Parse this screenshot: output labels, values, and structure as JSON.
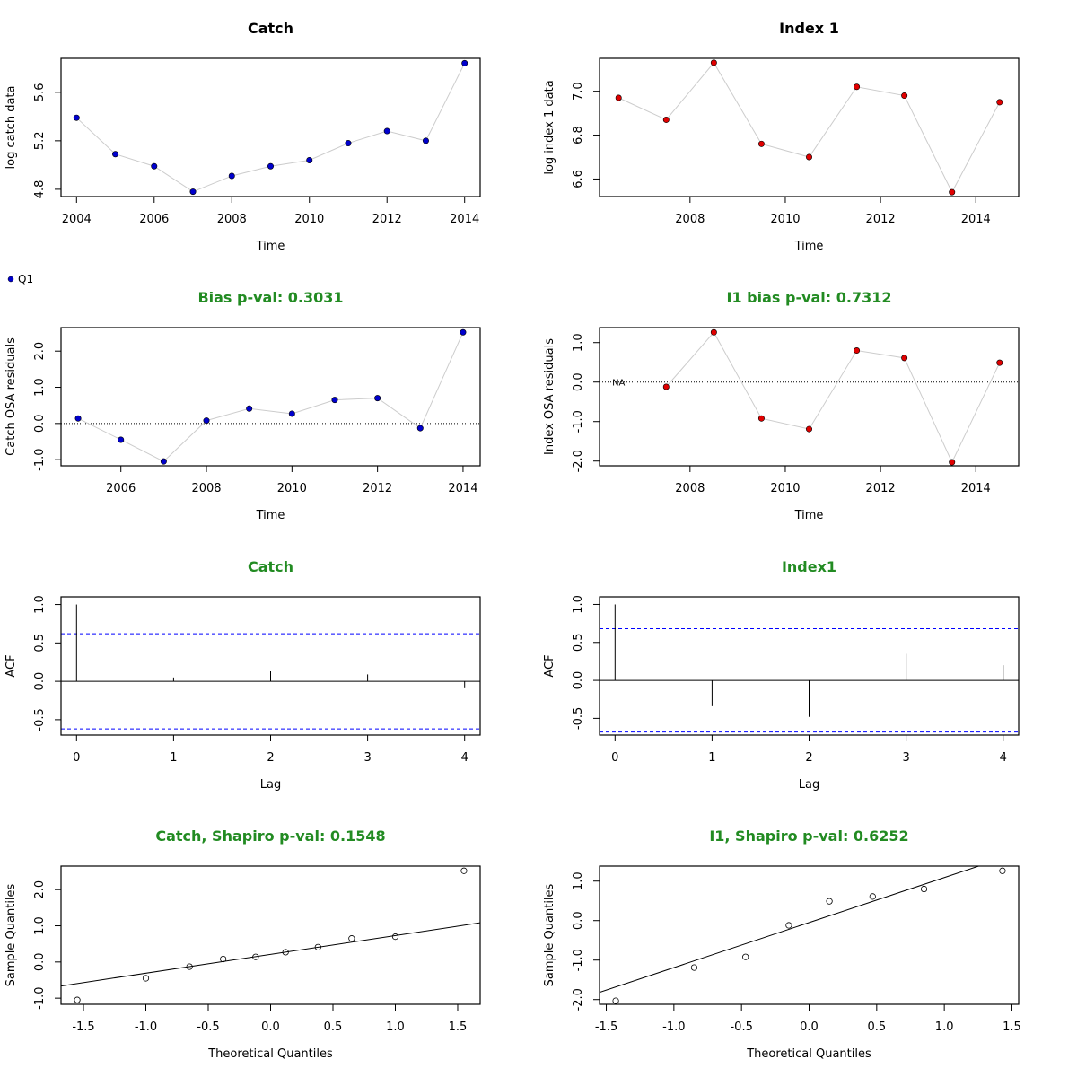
{
  "colors": {
    "green_title": "#228b22",
    "black_title": "#000000",
    "catch_point": "#0000cd",
    "index_point": "#e00000",
    "connector": "#cccccc",
    "ci_line": "#0000ff"
  },
  "chart_data": [
    {
      "id": "catch-data",
      "type": "line",
      "title": "Catch",
      "title_color": "black",
      "xlabel": "Time",
      "ylabel": "log catch data",
      "xlim": [
        2003.6,
        2014.4
      ],
      "ylim": [
        4.74,
        5.88
      ],
      "xticks": [
        2004,
        2006,
        2008,
        2010,
        2012,
        2014
      ],
      "yticks": [
        4.8,
        5.2,
        5.6
      ],
      "ytick_labels": [
        "4.8",
        "5.2",
        "5.6"
      ],
      "point_color": "blue",
      "x": [
        2004,
        2005,
        2006,
        2007,
        2008,
        2009,
        2010,
        2011,
        2012,
        2013,
        2014
      ],
      "y": [
        5.39,
        5.09,
        4.99,
        4.78,
        4.91,
        4.99,
        5.04,
        5.18,
        5.28,
        5.2,
        5.84
      ]
    },
    {
      "id": "index-data",
      "type": "line",
      "title": "Index 1",
      "title_color": "black",
      "xlabel": "Time",
      "ylabel": "log index 1 data",
      "xlim": [
        2006.1,
        2014.9
      ],
      "ylim": [
        6.52,
        7.15
      ],
      "xticks": [
        2008,
        2010,
        2012,
        2014
      ],
      "yticks": [
        6.6,
        6.8,
        7.0
      ],
      "ytick_labels": [
        "6.6",
        "6.8",
        "7.0"
      ],
      "point_color": "red",
      "x": [
        2006.5,
        2007.5,
        2008.5,
        2009.5,
        2010.5,
        2011.5,
        2012.5,
        2013.5,
        2014.5
      ],
      "y": [
        6.97,
        6.87,
        7.13,
        6.76,
        6.7,
        7.02,
        6.98,
        6.54,
        6.95
      ]
    },
    {
      "id": "catch-resid",
      "type": "line",
      "title": "Bias p-val: 0.3031",
      "title_color": "green",
      "xlabel": "Time",
      "ylabel": "Catch OSA residuals",
      "xlim": [
        2004.6,
        2014.4
      ],
      "ylim": [
        -1.17,
        2.65
      ],
      "xticks": [
        2006,
        2008,
        2010,
        2012,
        2014
      ],
      "yticks": [
        -1,
        0,
        1,
        2
      ],
      "ytick_labels": [
        "-1.0",
        "0.0",
        "1.0",
        "2.0"
      ],
      "point_color": "blue",
      "zero_line": true,
      "x": [
        2005,
        2006,
        2007,
        2008,
        2009,
        2010,
        2011,
        2012,
        2013,
        2014
      ],
      "y": [
        0.14,
        -0.45,
        -1.05,
        0.08,
        0.41,
        0.27,
        0.65,
        0.7,
        -0.13,
        2.52
      ]
    },
    {
      "id": "index-resid",
      "type": "line",
      "title": "I1 bias p-val: 0.7312",
      "title_color": "green",
      "xlabel": "Time",
      "ylabel": "Index OSA residuals",
      "xlim": [
        2006.1,
        2014.9
      ],
      "ylim": [
        -2.12,
        1.38
      ],
      "xticks": [
        2008,
        2010,
        2012,
        2014
      ],
      "yticks": [
        -2,
        -1,
        0,
        1
      ],
      "ytick_labels": [
        "-2.0",
        "-1.0",
        "0.0",
        "1.0"
      ],
      "point_color": "red",
      "zero_line": true,
      "annotation": {
        "text": "NA",
        "x": 2006.5,
        "y": 0
      },
      "x": [
        2007.5,
        2008.5,
        2009.5,
        2010.5,
        2011.5,
        2012.5,
        2013.5,
        2014.5
      ],
      "y": [
        -0.12,
        1.26,
        -0.92,
        -1.19,
        0.8,
        0.61,
        -2.03,
        0.49
      ]
    },
    {
      "id": "catch-acf",
      "type": "bar",
      "title": "Catch",
      "title_color": "green",
      "xlabel": "Lag",
      "ylabel": "ACF",
      "xlim": [
        -0.16,
        4.16
      ],
      "ylim": [
        -0.7,
        1.1
      ],
      "xticks": [
        0,
        1,
        2,
        3,
        4
      ],
      "yticks": [
        -0.5,
        0,
        0.5,
        1
      ],
      "ytick_labels": [
        "-0.5",
        "0.0",
        "0.5",
        "1.0"
      ],
      "ci": 0.62,
      "lags": [
        0,
        1,
        2,
        3,
        4
      ],
      "values": [
        1.0,
        0.05,
        0.13,
        0.09,
        -0.09
      ]
    },
    {
      "id": "index-acf",
      "type": "bar",
      "title": "Index1",
      "title_color": "green",
      "xlabel": "Lag",
      "ylabel": "ACF",
      "xlim": [
        -0.16,
        4.16
      ],
      "ylim": [
        -0.72,
        1.1
      ],
      "xticks": [
        0,
        1,
        2,
        3,
        4
      ],
      "yticks": [
        -0.5,
        0,
        0.5,
        1
      ],
      "ytick_labels": [
        "-0.5",
        "0.0",
        "0.5",
        "1.0"
      ],
      "ci": 0.68,
      "lags": [
        0,
        1,
        2,
        3,
        4
      ],
      "values": [
        1.0,
        -0.34,
        -0.48,
        0.35,
        0.2
      ]
    },
    {
      "id": "catch-qq",
      "type": "scatter",
      "title": "Catch, Shapiro p-val: 0.1548",
      "title_color": "green",
      "xlabel": "Theoretical Quantiles",
      "ylabel": "Sample Quantiles",
      "xlim": [
        -1.68,
        1.68
      ],
      "ylim": [
        -1.17,
        2.65
      ],
      "xticks": [
        -1.5,
        -1,
        -0.5,
        0,
        0.5,
        1,
        1.5
      ],
      "xtick_labels": [
        "-1.5",
        "-1.0",
        "-0.5",
        "0.0",
        "0.5",
        "1.0",
        "1.5"
      ],
      "yticks": [
        -1,
        0,
        1,
        2
      ],
      "ytick_labels": [
        "-1.0",
        "0.0",
        "1.0",
        "2.0"
      ],
      "x": [
        -1.55,
        -1.0,
        -0.65,
        -0.38,
        -0.12,
        0.12,
        0.38,
        0.65,
        1.0,
        1.55
      ],
      "y": [
        -1.05,
        -0.45,
        -0.13,
        0.08,
        0.14,
        0.27,
        0.41,
        0.65,
        0.7,
        2.52
      ],
      "qq_line": {
        "intercept": 0.21,
        "slope": 0.52
      }
    },
    {
      "id": "index-qq",
      "type": "scatter",
      "title": "I1, Shapiro p-val: 0.6252",
      "title_color": "green",
      "xlabel": "Theoretical Quantiles",
      "ylabel": "Sample Quantiles",
      "xlim": [
        -1.55,
        1.55
      ],
      "ylim": [
        -2.12,
        1.38
      ],
      "xticks": [
        -1.5,
        -1,
        -0.5,
        0,
        0.5,
        1,
        1.5
      ],
      "xtick_labels": [
        "-1.5",
        "-1.0",
        "-0.5",
        "0.0",
        "0.5",
        "1.0",
        "1.5"
      ],
      "yticks": [
        -2,
        -1,
        0,
        1
      ],
      "ytick_labels": [
        "-2.0",
        "-1.0",
        "0.0",
        "1.0"
      ],
      "x": [
        -1.43,
        -0.85,
        -0.47,
        -0.15,
        0.15,
        0.47,
        0.85,
        1.43
      ],
      "y": [
        -2.03,
        -1.19,
        -0.92,
        -0.12,
        0.49,
        0.61,
        0.8,
        1.26
      ],
      "qq_line": {
        "intercept": -0.05,
        "slope": 1.14
      }
    }
  ],
  "legend": {
    "items": [
      {
        "label": "Q1",
        "color": "blue"
      }
    ]
  }
}
